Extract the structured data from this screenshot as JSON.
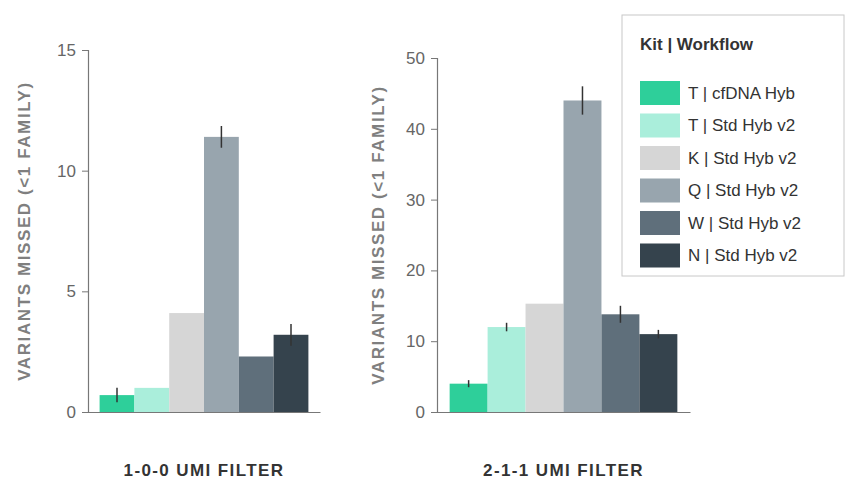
{
  "chart_data": [
    {
      "type": "bar",
      "y_label": "VARIANTS MISSED (<1 FAMILY)",
      "x_label": "1-0-0 UMI FILTER",
      "categories": [
        null
      ],
      "series": [
        {
          "name": "T | cfDNA Hyb",
          "color": "#2ecf9a",
          "values": [
            0.7
          ],
          "errors": [
            0.3
          ]
        },
        {
          "name": "T | Std Hyb v2",
          "color": "#aaeedb",
          "values": [
            1.0
          ],
          "errors": [
            null
          ]
        },
        {
          "name": "K | Std Hyb v2",
          "color": "#d6d6d6",
          "values": [
            4.1
          ],
          "errors": [
            null
          ]
        },
        {
          "name": "Q | Std Hyb v2",
          "color": "#98a5ae",
          "values": [
            11.4
          ],
          "errors": [
            0.45
          ]
        },
        {
          "name": "W | Std Hyb v2",
          "color": "#5f6f7b",
          "values": [
            2.3
          ],
          "errors": [
            null
          ]
        },
        {
          "name": "N | Std Hyb v2",
          "color": "#35434d",
          "values": [
            3.2
          ],
          "errors": [
            0.45
          ]
        }
      ],
      "ylim": [
        0,
        15
      ],
      "yticks": [
        0,
        5,
        10,
        15
      ],
      "tick_labels": "y"
    },
    {
      "type": "bar",
      "y_label": "VARIANTS MISSED (<1 FAMILY)",
      "x_label": "2-1-1 UMI FILTER",
      "categories": [
        null
      ],
      "series": [
        {
          "name": "T | cfDNA Hyb",
          "color": "#2ecf9a",
          "values": [
            4.0
          ],
          "errors": [
            0.5
          ]
        },
        {
          "name": "T | Std Hyb v2",
          "color": "#aaeedb",
          "values": [
            12.0
          ],
          "errors": [
            0.6
          ]
        },
        {
          "name": "K | Std Hyb v2",
          "color": "#d6d6d6",
          "values": [
            15.3
          ],
          "errors": [
            null
          ]
        },
        {
          "name": "Q | Std Hyb v2",
          "color": "#98a5ae",
          "values": [
            44.0
          ],
          "errors": [
            2.0
          ]
        },
        {
          "name": "W | Std Hyb v2",
          "color": "#5f6f7b",
          "values": [
            13.8
          ],
          "errors": [
            1.2
          ]
        },
        {
          "name": "N | Std Hyb v2",
          "color": "#35434d",
          "values": [
            11.0
          ],
          "errors": [
            0.6
          ]
        }
      ],
      "ylim": [
        0,
        50
      ],
      "yticks": [
        0,
        10,
        20,
        30,
        40,
        50
      ],
      "tick_labels": "y",
      "legend": "top-right",
      "legend_title": "Kit | Workflow"
    }
  ]
}
